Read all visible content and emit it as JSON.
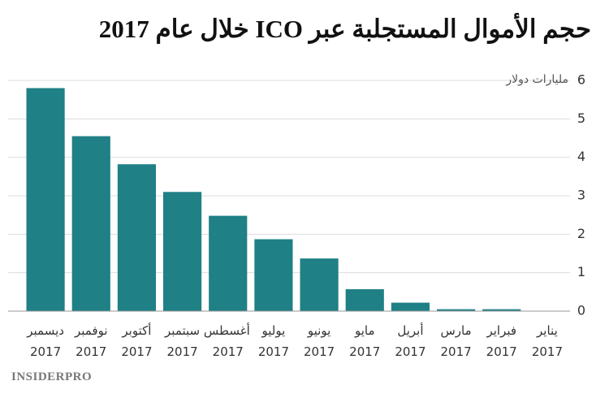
{
  "chart_data": {
    "type": "bar",
    "title": "حجم الأموال المستجلبة عبر ICO خلال عام 2017",
    "y_label": "مليارات دولار",
    "logo": "INSIDERPRO",
    "categories": [
      "ديسمبر 2017",
      "نوفمبر 2017",
      "أكتوبر 2017",
      "سبتمبر 2017",
      "أغسطس 2017",
      "يوليو 2017",
      "يونيو 2017",
      "مايو 2017",
      "أبريل 2017",
      "مارس 2017",
      "فبراير 2017",
      "يناير 2017"
    ],
    "values": [
      5.8,
      4.55,
      3.82,
      3.1,
      2.48,
      1.87,
      1.37,
      0.57,
      0.22,
      0.05,
      0.05,
      0.01
    ],
    "color": "#1f8085",
    "ylim": [
      0,
      6
    ],
    "yticks": [
      0,
      1,
      2,
      3,
      4,
      5,
      6
    ],
    "grid": true
  }
}
